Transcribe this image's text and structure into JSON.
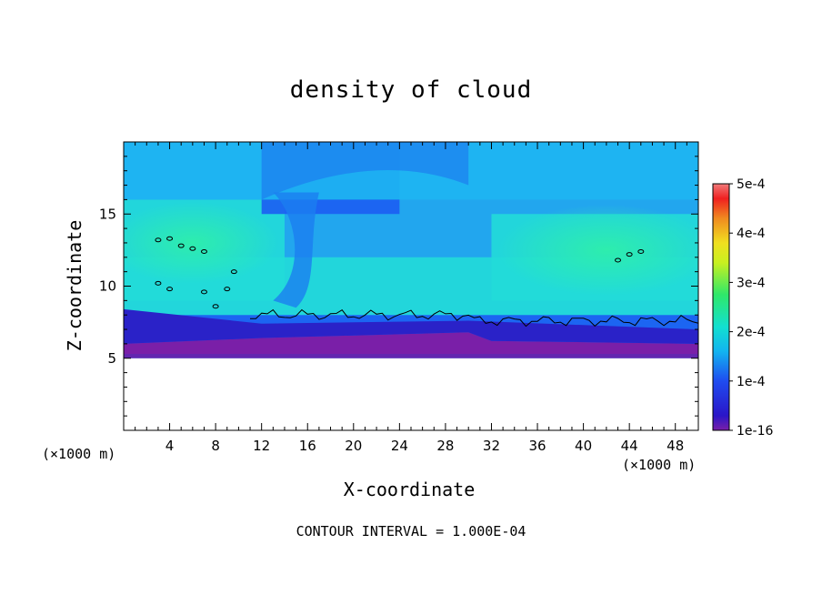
{
  "chart_data": {
    "type": "heatmap",
    "title": "density of cloud",
    "xlabel": "X-coordinate",
    "ylabel": "Z-coordinate",
    "x_unit": "(×1000 m)",
    "x_ticks": [
      4,
      8,
      12,
      16,
      20,
      24,
      28,
      32,
      36,
      40,
      44,
      48
    ],
    "y_ticks": [
      5,
      10,
      15
    ],
    "xlim": [
      0,
      50
    ],
    "ylim": [
      0,
      20
    ],
    "colorbar": {
      "min": 1e-16,
      "max": 0.0005,
      "tick_labels": [
        "1e-16",
        "1e-4",
        "2e-4",
        "3e-4",
        "4e-4",
        "5e-4"
      ],
      "tick_values": [
        0,
        0.0001,
        0.0002,
        0.0003,
        0.0004,
        0.0005
      ]
    },
    "contour_note": "CONTOUR INTERVAL = 1.000E-04",
    "field_regions": [
      {
        "x": [
          0,
          50
        ],
        "z": [
          5,
          6
        ],
        "value": 1e-05
      },
      {
        "x": [
          0,
          50
        ],
        "z": [
          6,
          8
        ],
        "value": 8e-05
      },
      {
        "x": [
          0,
          50
        ],
        "z": [
          8,
          12
        ],
        "value": 0.00017
      },
      {
        "x": [
          0,
          14
        ],
        "z": [
          9,
          16
        ],
        "value": 0.0002
      },
      {
        "x": [
          32,
          50
        ],
        "z": [
          9,
          15
        ],
        "value": 0.00019
      },
      {
        "x": [
          12,
          24
        ],
        "z": [
          15,
          20
        ],
        "value": 7e-05
      },
      {
        "x": [
          0,
          50
        ],
        "z": [
          16,
          20
        ],
        "value": 0.00011
      }
    ]
  }
}
